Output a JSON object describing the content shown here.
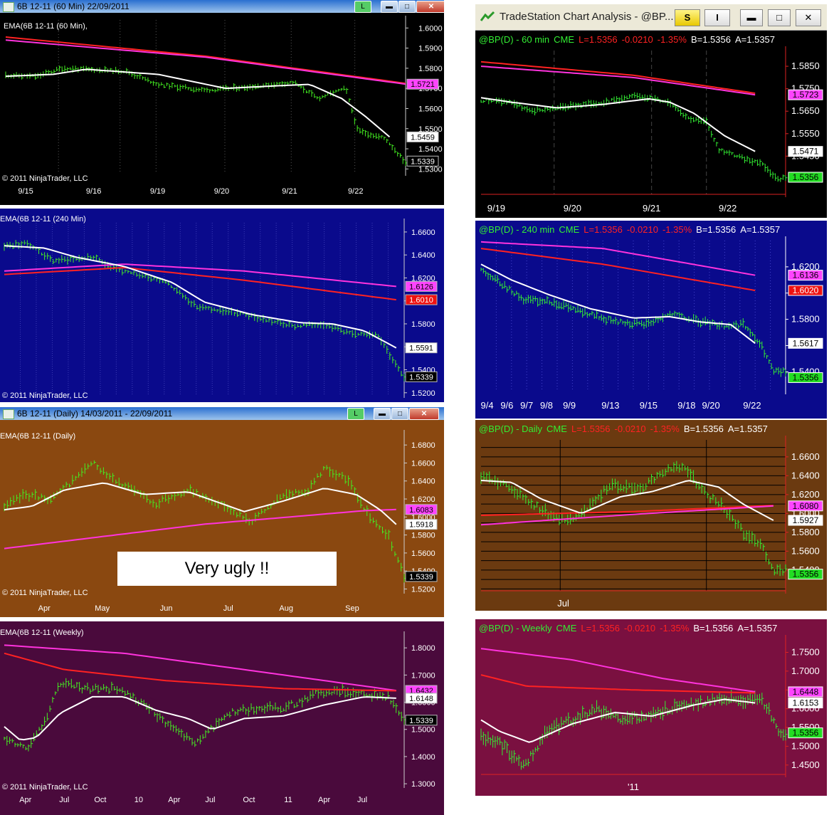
{
  "left_panels": [
    {
      "window_title": "6B 12-11 (60 Min)  22/09/2011",
      "label": "EMA(6B 12-11 (60 Min),",
      "copyright": "© 2011 NinjaTrader, LLC",
      "y_ticks": [
        "1.6000",
        "1.5900",
        "1.5800",
        "1.5700",
        "1.5600",
        "1.5500",
        "1.5400",
        "1.5300"
      ],
      "x_ticks": [
        "9/15",
        "9/16",
        "9/19",
        "9/20",
        "9/21",
        "9/22"
      ],
      "price_tags": [
        {
          "text": "1.5721",
          "color": "#ff44ff"
        },
        {
          "text": "1.5459",
          "color": "#ffffff"
        },
        {
          "text": "1.5339",
          "color": "#000000"
        }
      ]
    },
    {
      "label": "EMA(6B 12-11 (240 Min)",
      "copyright": "© 2011 NinjaTrader, LLC",
      "y_ticks": [
        "1.6600",
        "1.6400",
        "1.6200",
        "1.6000",
        "1.5800",
        "1.5600",
        "1.5400",
        "1.5200"
      ],
      "price_tags": [
        {
          "text": "1.6126",
          "color": "#ff44ff"
        },
        {
          "text": "1.6010",
          "color": "#ee1111"
        },
        {
          "text": "1.5591",
          "color": "#ffffff"
        },
        {
          "text": "1.5339",
          "color": "#000000"
        }
      ]
    },
    {
      "window_title": "6B 12-11 (Daily)  14/03/2011 - 22/09/2011",
      "label": "EMA(6B 12-11 (Daily)",
      "copyright": "© 2011 NinjaTrader, LLC",
      "note": "Very ugly !!",
      "y_ticks": [
        "1.6800",
        "1.6600",
        "1.6400",
        "1.6200",
        "1.6000",
        "1.5800",
        "1.5600",
        "1.5400",
        "1.5200"
      ],
      "x_ticks": [
        "Apr",
        "May",
        "Jun",
        "Jul",
        "Aug",
        "Sep"
      ],
      "price_tags": [
        {
          "text": "1.6083",
          "color": "#ff44ff"
        },
        {
          "text": "1.5918",
          "color": "#ffffff"
        },
        {
          "text": "1.5339",
          "color": "#000000"
        }
      ]
    },
    {
      "label": "EMA(6B 12-11 (Weekly)",
      "copyright": "© 2011 NinjaTrader, LLC",
      "y_ticks": [
        "1.8000",
        "1.7000",
        "1.6000",
        "1.5000",
        "1.4000",
        "1.3000"
      ],
      "x_ticks": [
        "Apr",
        "Jul",
        "Oct",
        "10",
        "Apr",
        "Jul",
        "Oct",
        "11",
        "Apr",
        "Jul"
      ],
      "price_tags": [
        {
          "text": "1.6432",
          "color": "#ff44ff"
        },
        {
          "text": "1.6148",
          "color": "#ffffff"
        },
        {
          "text": "1.5339",
          "color": "#000000"
        }
      ]
    }
  ],
  "right_window": {
    "title": "TradeStation Chart Analysis - @BP...",
    "btn_s": "S",
    "btn_i": "I"
  },
  "right_panels": [
    {
      "hdr_symbol": "@BP(D) - 60 min",
      "hdr_exch": "CME",
      "hdr_last": "L=1.5356",
      "hdr_chg": "-0.0210",
      "hdr_pct": "-1.35%",
      "hdr_bid": "B=1.5356",
      "hdr_ask": "A=1.5357",
      "y_ticks": [
        "1.5850",
        "1.5750",
        "1.5650",
        "1.5550",
        "1.5450"
      ],
      "x_ticks": [
        "9/19",
        "9/20",
        "9/21",
        "9/22"
      ],
      "price_tags": [
        {
          "text": "1.5723",
          "color": "#ff44ff"
        },
        {
          "text": "1.5471",
          "color": "#ffffff"
        },
        {
          "text": "1.5356",
          "color": "#22dd22"
        }
      ]
    },
    {
      "hdr_symbol": "@BP(D) - 240 min",
      "hdr_exch": "CME",
      "hdr_last": "L=1.5356",
      "hdr_chg": "-0.0210",
      "hdr_pct": "-1.35%",
      "hdr_bid": "B=1.5356",
      "hdr_ask": "A=1.5357",
      "y_ticks": [
        "1.6200",
        "1.6000",
        "1.5800",
        "1.5600",
        "1.5400"
      ],
      "x_ticks": [
        "9/4",
        "9/6",
        "9/7",
        "9/8",
        "9/9",
        "9/13",
        "9/15",
        "9/18",
        "9/20",
        "9/22"
      ],
      "price_tags": [
        {
          "text": "1.6136",
          "color": "#ff44ff"
        },
        {
          "text": "1.6020",
          "color": "#ee1111"
        },
        {
          "text": "1.5617",
          "color": "#ffffff"
        },
        {
          "text": "1.5356",
          "color": "#22dd22"
        }
      ]
    },
    {
      "hdr_symbol": "@BP(D) - Daily",
      "hdr_exch": "CME",
      "hdr_last": "L=1.5356",
      "hdr_chg": "-0.0210",
      "hdr_pct": "-1.35%",
      "hdr_bid": "B=1.5356",
      "hdr_ask": "A=1.5357",
      "y_ticks": [
        "1.6600",
        "1.6400",
        "1.6200",
        "1.6000",
        "1.5800",
        "1.5600",
        "1.5400"
      ],
      "x_ticks": [
        "Jul"
      ],
      "price_tags": [
        {
          "text": "1.6080",
          "color": "#ff44ff"
        },
        {
          "text": "1.5927",
          "color": "#ffffff"
        },
        {
          "text": "1.5356",
          "color": "#22dd22"
        }
      ]
    },
    {
      "hdr_symbol": "@BP(D) - Weekly",
      "hdr_exch": "CME",
      "hdr_last": "L=1.5356",
      "hdr_chg": "-0.0210",
      "hdr_pct": "-1.35%",
      "hdr_bid": "B=1.5356",
      "hdr_ask": "A=1.5357",
      "y_ticks": [
        "1.7500",
        "1.7000",
        "1.6500",
        "1.6000",
        "1.5500",
        "1.5000",
        "1.4500"
      ],
      "x_ticks": [
        "'11"
      ],
      "price_tags": [
        {
          "text": "1.6448",
          "color": "#ff44ff"
        },
        {
          "text": "1.6153",
          "color": "#ffffff"
        },
        {
          "text": "1.5356",
          "color": "#22dd22"
        }
      ]
    }
  ],
  "chart_data": [
    {
      "type": "line",
      "timeframe": "60 Min",
      "series": [
        {
          "name": "EMA(6B 12-11 (60 Min),",
          "color": "#ffffff"
        }
      ],
      "ylim": [
        1.528,
        1.604
      ],
      "last_values": {
        "ema_fast": 1.5459,
        "ema_slow": 1.5721,
        "close": 1.5339
      }
    },
    {
      "type": "line",
      "timeframe": "240 Min",
      "series": [
        {
          "name": "EMA(6B 12-11 (240 Min)",
          "color": "#ffffff"
        }
      ],
      "ylim": [
        1.518,
        1.668
      ],
      "last_values": {
        "ema_fast": 1.5591,
        "ema_slow_red": 1.601,
        "ema_slow_magenta": 1.6126,
        "close": 1.5339
      }
    },
    {
      "type": "line",
      "timeframe": "Daily",
      "series": [
        {
          "name": "EMA(6B 12-11 (Daily)",
          "color": "#ffffff"
        }
      ],
      "ylim": [
        1.518,
        1.692
      ],
      "last_values": {
        "ema_fast": 1.5918,
        "ema_slow": 1.6083,
        "close": 1.5339
      }
    },
    {
      "type": "line",
      "timeframe": "Weekly",
      "series": [
        {
          "name": "EMA(6B 12-11 (Weekly)",
          "color": "#ffffff"
        }
      ],
      "ylim": [
        1.295,
        1.845
      ],
      "last_values": {
        "ema_fast": 1.6148,
        "ema_slow": 1.6432,
        "close": 1.5339
      }
    },
    {
      "type": "line",
      "timeframe": "60 min",
      "symbol": "@BP(D)",
      "ylim": [
        1.528,
        1.592
      ],
      "last_values": {
        "ema_fast": 1.5471,
        "ema_slow": 1.5723,
        "close": 1.5356
      }
    },
    {
      "type": "line",
      "timeframe": "240 min",
      "symbol": "@BP(D)",
      "ylim": [
        1.525,
        1.64
      ],
      "last_values": {
        "ema_fast": 1.5617,
        "ema_slow_red": 1.602,
        "ema_slow_magenta": 1.6136,
        "close": 1.5356
      }
    },
    {
      "type": "line",
      "timeframe": "Daily",
      "symbol": "@BP(D)",
      "ylim": [
        1.518,
        1.678
      ],
      "last_values": {
        "ema_fast": 1.5927,
        "ema_slow": 1.608,
        "close": 1.5356
      }
    },
    {
      "type": "line",
      "timeframe": "Weekly",
      "symbol": "@BP(D)",
      "ylim": [
        1.425,
        1.785
      ],
      "last_values": {
        "ema_fast": 1.6153,
        "ema_slow": 1.6448,
        "close": 1.5356
      }
    }
  ]
}
